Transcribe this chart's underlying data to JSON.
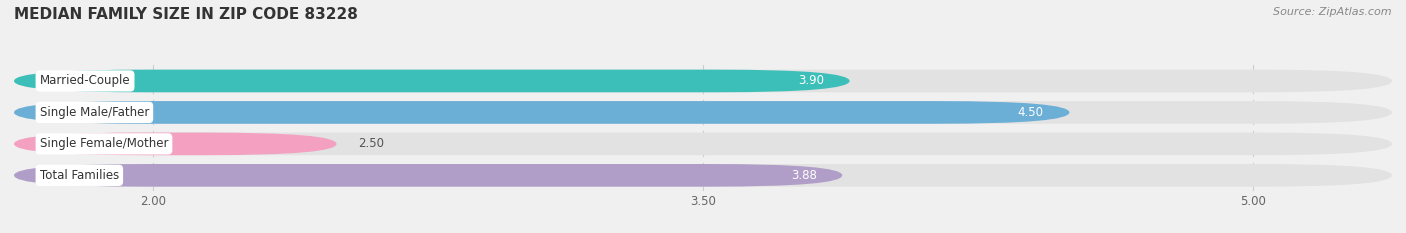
{
  "title": "MEDIAN FAMILY SIZE IN ZIP CODE 83228",
  "source": "Source: ZipAtlas.com",
  "categories": [
    "Married-Couple",
    "Single Male/Father",
    "Single Female/Mother",
    "Total Families"
  ],
  "values": [
    3.9,
    4.5,
    2.5,
    3.88
  ],
  "bar_colors": [
    "#3bbfb8",
    "#6baed6",
    "#f4a0c0",
    "#b09ec8"
  ],
  "xlim": [
    1.62,
    5.38
  ],
  "xstart": 1.62,
  "xticks": [
    2.0,
    3.5,
    5.0
  ],
  "xtick_labels": [
    "2.00",
    "3.50",
    "5.00"
  ],
  "bar_height": 0.72,
  "label_fontsize": 8.5,
  "value_fontsize": 8.5,
  "title_fontsize": 11,
  "bg_color": "#f0f0f0",
  "bar_bg_color": "#e2e2e2",
  "label_bg_color": "#ffffff",
  "value_label_color_inside": "#ffffff",
  "value_label_color_outside": "#666666"
}
